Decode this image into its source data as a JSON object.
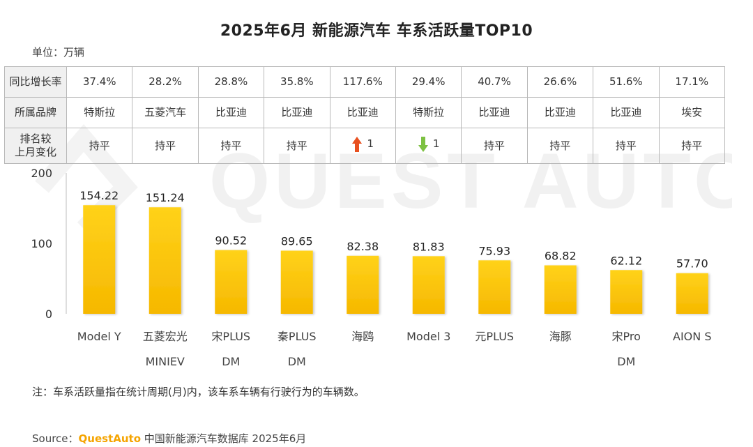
{
  "title": "2025年6月 新能源汽车 车系活跃量TOP10",
  "unit_label": "单位：万辆",
  "watermark_text": "QUEST AUTO",
  "table": {
    "row_headers": [
      "同比增长率",
      "所属品牌",
      "排名较上月变化"
    ],
    "row_header_lines": [
      "排名较",
      "上月变化"
    ],
    "yoy_growth": [
      "37.4%",
      "28.2%",
      "28.8%",
      "35.8%",
      "117.6%",
      "29.4%",
      "40.7%",
      "26.6%",
      "51.6%",
      "17.1%"
    ],
    "brand": [
      "特斯拉",
      "五菱汽车",
      "比亚迪",
      "比亚迪",
      "比亚迪",
      "特斯拉",
      "比亚迪",
      "比亚迪",
      "比亚迪",
      "埃安"
    ],
    "rank_change": [
      {
        "text": "持平",
        "dir": "flat"
      },
      {
        "text": "持平",
        "dir": "flat"
      },
      {
        "text": "持平",
        "dir": "flat"
      },
      {
        "text": "持平",
        "dir": "flat"
      },
      {
        "text": "1",
        "dir": "up"
      },
      {
        "text": "1",
        "dir": "down"
      },
      {
        "text": "持平",
        "dir": "flat"
      },
      {
        "text": "持平",
        "dir": "flat"
      },
      {
        "text": "持平",
        "dir": "flat"
      },
      {
        "text": "持平",
        "dir": "flat"
      }
    ],
    "up_color": "#e8501f",
    "down_color": "#7dc142"
  },
  "chart_data": {
    "type": "bar",
    "categories": [
      [
        "Model Y"
      ],
      [
        "五菱宏光",
        "MINIEV"
      ],
      [
        "宋PLUS",
        "DM"
      ],
      [
        "秦PLUS",
        "DM"
      ],
      [
        "海鸥"
      ],
      [
        "Model 3"
      ],
      [
        "元PLUS"
      ],
      [
        "海豚"
      ],
      [
        "宋Pro",
        "DM"
      ],
      [
        "AION S"
      ]
    ],
    "values": [
      154.22,
      151.24,
      90.52,
      89.65,
      82.38,
      81.83,
      75.93,
      68.82,
      62.12,
      57.7
    ],
    "value_labels": [
      "154.22",
      "151.24",
      "90.52",
      "89.65",
      "82.38",
      "81.83",
      "75.93",
      "68.82",
      "62.12",
      "57.70"
    ],
    "ylim": [
      0,
      200
    ],
    "yticks": [
      "0",
      "100",
      "200"
    ],
    "bar_color_top": "#ffd21a",
    "bar_color_bottom": "#f6b800"
  },
  "note": "注：车系活跃量指在统计周期(月)内，该车系车辆有行驶行为的车辆数。",
  "source": {
    "prefix": "Source：",
    "brand": "QuestAuto",
    "text": " 中国新能源汽车数据库 2025年6月"
  }
}
